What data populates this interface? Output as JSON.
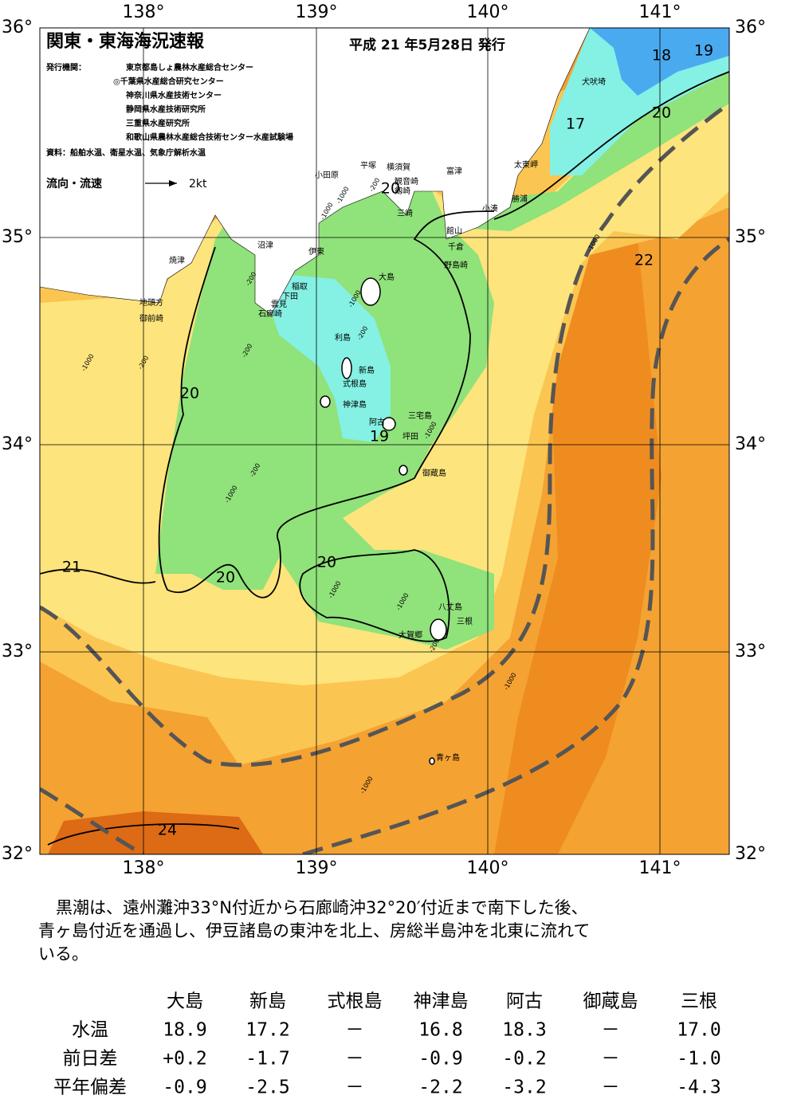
{
  "header": {
    "title": "関東・東海海況速報",
    "date": "平成 21 年5月28日 発行"
  },
  "agencies": {
    "label": "発行機関：",
    "items": [
      "東京都島しょ農林水産総合センター",
      "◎千葉県水産総合研究センター",
      "神奈川県水産技術センター",
      "静岡県水産技術研究所",
      "三重県水産研究所",
      "和歌山県農林水産総合技術センター水産試験場"
    ]
  },
  "source": "資料：船舶水温、衛星水温、気象庁解析水温",
  "legend": {
    "label": "流向・流速",
    "scale": "2kt"
  },
  "axes": {
    "lon_labels": [
      "138°",
      "139°",
      "140°",
      "141°"
    ],
    "lat_labels": [
      "36°",
      "35°",
      "34°",
      "33°",
      "32°"
    ]
  },
  "places": [
    "小田原",
    "平塚",
    "横須賀",
    "観音崎",
    "富津",
    "太東岬",
    "犬吠埼",
    "勝浦",
    "小湊",
    "館山",
    "千倉",
    "野島崎",
    "三崎",
    "剱崎",
    "沼津",
    "伊東",
    "焼津",
    "稲取",
    "下田",
    "雲見",
    "石廊崎",
    "地頭方",
    "御前崎",
    "大島",
    "利島",
    "新島",
    "式根島",
    "神津島",
    "阿古",
    "三宅島",
    "坪田",
    "御蔵島",
    "八丈島",
    "三根",
    "大賀郷",
    "青ヶ島"
  ],
  "isotherm_labels": [
    "18",
    "19",
    "17",
    "20",
    "20",
    "22",
    "20",
    "19",
    "20",
    "21",
    "20",
    "24"
  ],
  "depth_labels": [
    "-1000",
    "-200",
    "-1000",
    "-200",
    "-1000",
    "-200",
    "-200",
    "-1000",
    "-200",
    "-1000",
    "-1000",
    "-1000",
    "-1000",
    "-1000",
    "-200",
    "-1000",
    "-1000",
    "-200"
  ],
  "description": [
    "黒潮は、遠州灘沖33°N付近から石廊崎沖32°20′付近まで南下した後、",
    "青ヶ島付近を通過し、伊豆諸島の東沖を北上、房総半島沖を北東に流れて",
    "いる。"
  ],
  "table": {
    "columns": [
      "大島",
      "新島",
      "式根島",
      "神津島",
      "阿古",
      "御蔵島",
      "三根"
    ],
    "rows": [
      {
        "label": "水温",
        "values": [
          "18.9",
          "17.2",
          "－",
          "16.8",
          "18.3",
          "－",
          "17.0"
        ]
      },
      {
        "label": "前日差",
        "values": [
          "+0.2",
          "-1.7",
          "－",
          "-0.9",
          "-0.2",
          "－",
          "-1.0"
        ]
      },
      {
        "label": "平年偏差",
        "values": [
          "-0.9",
          "-2.5",
          "－",
          "-2.2",
          "-3.2",
          "－",
          "-4.3"
        ]
      }
    ]
  }
}
